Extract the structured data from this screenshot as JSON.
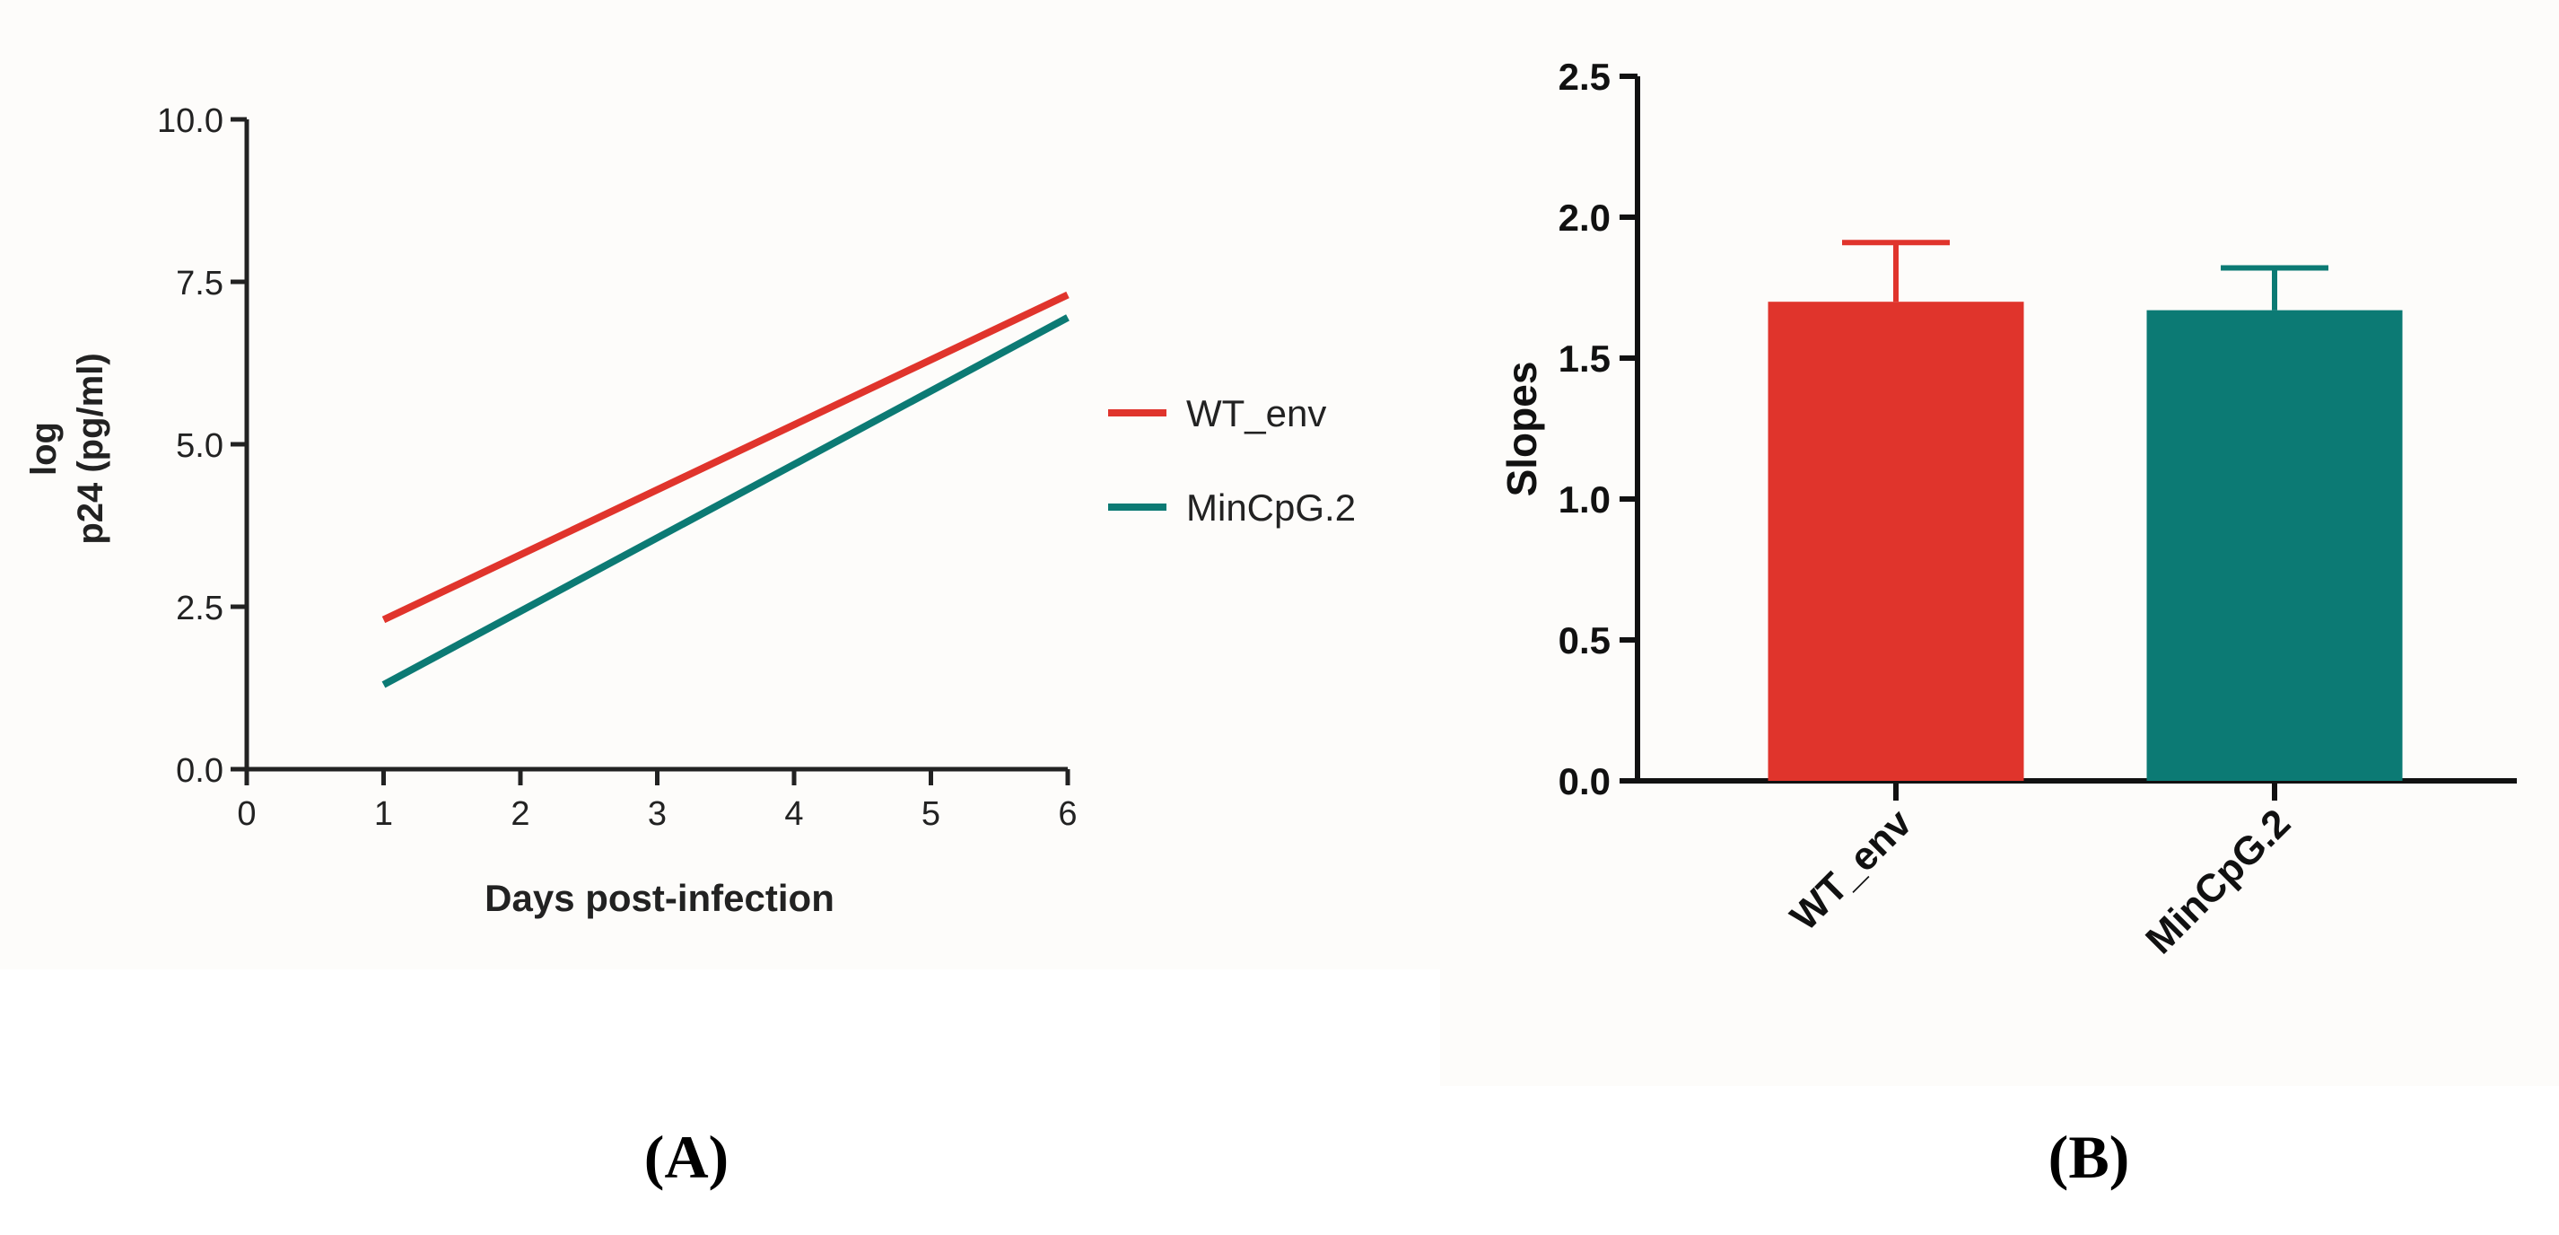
{
  "chart_data": [
    {
      "type": "line",
      "panel": "A",
      "xlabel": "Days post-infection",
      "ylabel_lines": [
        "log",
        "p24 (pg/ml)"
      ],
      "xlim": [
        0,
        6
      ],
      "ylim": [
        0,
        10
      ],
      "x_ticks": [
        "0",
        "1",
        "2",
        "3",
        "4",
        "5",
        "6"
      ],
      "y_ticks": [
        "0.0",
        "2.5",
        "5.0",
        "7.5",
        "10.0"
      ],
      "legend_position": "right",
      "series": [
        {
          "name": "WT_env",
          "color": "#e0342c",
          "x": [
            1,
            6
          ],
          "y": [
            2.3,
            7.3
          ]
        },
        {
          "name": "MinCpG.2",
          "color": "#0c7a74",
          "x": [
            1,
            6
          ],
          "y": [
            1.3,
            6.95
          ]
        }
      ]
    },
    {
      "type": "bar",
      "panel": "B",
      "ylabel": "Slopes",
      "ylim": [
        0,
        2.5
      ],
      "y_ticks": [
        "0.0",
        "0.5",
        "1.0",
        "1.5",
        "2.0",
        "2.5"
      ],
      "categories": [
        "WT_env",
        "MinCpG.2"
      ],
      "values": [
        1.7,
        1.67
      ],
      "errors": [
        0.21,
        0.15
      ],
      "colors": [
        "#e0342c",
        "#0c7a74"
      ]
    }
  ],
  "captions": {
    "a": "(A)",
    "b": "(B)"
  }
}
